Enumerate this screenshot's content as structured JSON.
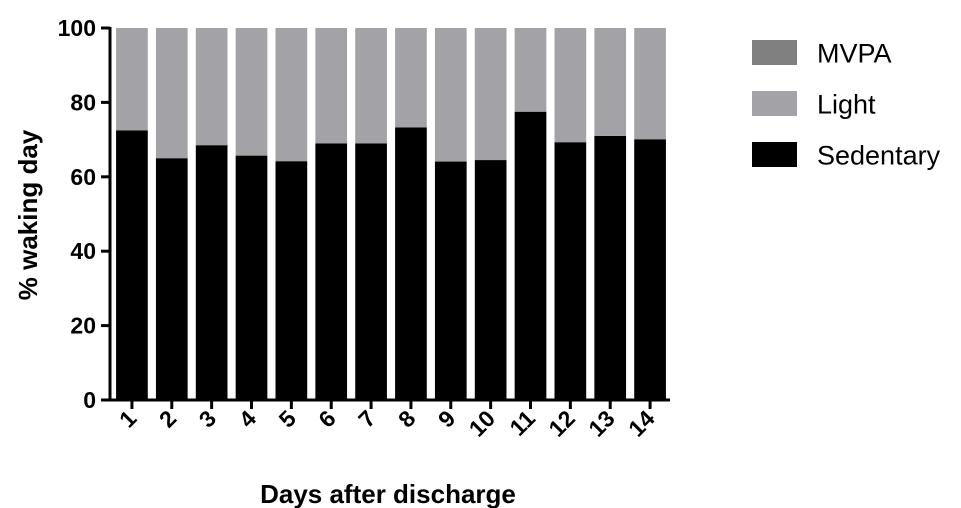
{
  "chart_data": {
    "type": "bar",
    "stacked": true,
    "xlabel": "Days after discharge",
    "ylabel": "% waking day",
    "ylim": [
      0,
      100
    ],
    "yticks": [
      0,
      20,
      40,
      60,
      80,
      100
    ],
    "categories": [
      "1",
      "2",
      "3",
      "4",
      "5",
      "6",
      "7",
      "8",
      "9",
      "10",
      "11",
      "12",
      "13",
      "14"
    ],
    "series": [
      {
        "name": "Sedentary",
        "color": "#000000",
        "values": [
          72.5,
          65,
          68.5,
          65.7,
          64.2,
          69,
          69,
          73.3,
          64.1,
          64.5,
          77.5,
          69.3,
          71,
          70.1
        ]
      },
      {
        "name": "Light",
        "color": "#a3a3a7",
        "values": [
          27.5,
          35,
          31.5,
          34.3,
          35.8,
          31,
          31,
          26.7,
          35.9,
          35.5,
          22.5,
          30.7,
          29,
          29.9
        ]
      },
      {
        "name": "MVPA",
        "color": "#808080",
        "values": [
          0,
          0,
          0,
          0,
          0,
          0,
          0,
          0,
          0,
          0,
          0,
          0,
          0,
          0
        ]
      }
    ],
    "legend": [
      "MVPA",
      "Light",
      "Sedentary"
    ],
    "legend_position": "right",
    "grid": false
  }
}
